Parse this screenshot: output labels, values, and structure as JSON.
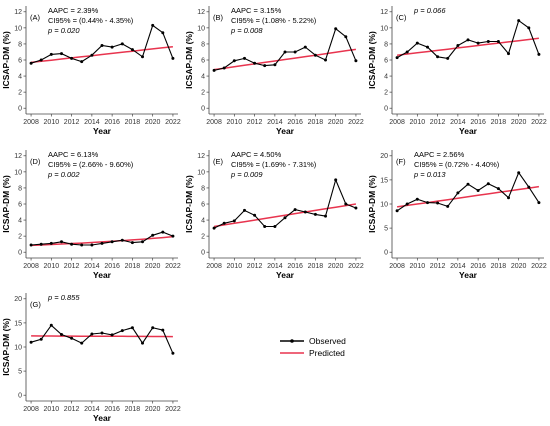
{
  "colors": {
    "observed": "#000000",
    "predicted": "#e8344e",
    "axis": "#444444"
  },
  "legend": {
    "observed_label": "Observed",
    "predicted_label": "Predicted"
  },
  "chart_data": [
    {
      "type": "line",
      "panel": "(A)",
      "annotations": [
        "AAPC = 2.39%",
        "CI95% = (0.44% - 4.35%)",
        "p = 0.020"
      ],
      "xlabel": "Year",
      "ylabel": "ICSAP-DM (%)",
      "ylim": [
        0,
        12
      ],
      "yticks": [
        0,
        2,
        4,
        6,
        8,
        10,
        12
      ],
      "xticks": [
        2008,
        2010,
        2012,
        2014,
        2016,
        2018,
        2020,
        2022
      ],
      "x": [
        2008,
        2009,
        2010,
        2011,
        2012,
        2013,
        2014,
        2015,
        2016,
        2017,
        2018,
        2019,
        2020,
        2021,
        2022
      ],
      "series": [
        {
          "name": "Observed",
          "values": [
            5.6,
            6.0,
            6.7,
            6.8,
            6.2,
            5.8,
            6.6,
            7.8,
            7.6,
            8.0,
            7.3,
            6.4,
            10.3,
            9.4,
            6.2
          ]
        },
        {
          "name": "Predicted",
          "values": [
            5.7,
            5.84,
            5.98,
            6.12,
            6.26,
            6.4,
            6.54,
            6.68,
            6.82,
            6.96,
            7.1,
            7.24,
            7.38,
            7.52,
            7.66
          ]
        }
      ]
    },
    {
      "type": "line",
      "panel": "(B)",
      "annotations": [
        "AAPC = 3.15%",
        "CI95% = (1.08% - 5.22%)",
        "p = 0.008"
      ],
      "xlabel": "Year",
      "ylabel": "ICSAP-DM (%)",
      "ylim": [
        0,
        12
      ],
      "yticks": [
        0,
        2,
        4,
        6,
        8,
        10,
        12
      ],
      "xticks": [
        2008,
        2010,
        2012,
        2014,
        2016,
        2018,
        2020,
        2022
      ],
      "x": [
        2008,
        2009,
        2010,
        2011,
        2012,
        2013,
        2014,
        2015,
        2016,
        2017,
        2018,
        2019,
        2020,
        2021,
        2022
      ],
      "series": [
        {
          "name": "Observed",
          "values": [
            4.7,
            5.0,
            5.9,
            6.2,
            5.6,
            5.3,
            5.4,
            7.0,
            7.0,
            7.6,
            6.6,
            6.0,
            9.9,
            8.9,
            5.9
          ]
        },
        {
          "name": "Predicted",
          "values": [
            4.8,
            4.98,
            5.16,
            5.34,
            5.52,
            5.7,
            5.88,
            6.06,
            6.24,
            6.42,
            6.6,
            6.78,
            6.96,
            7.14,
            7.32
          ]
        }
      ]
    },
    {
      "type": "line",
      "panel": "(C)",
      "annotations": [
        "p = 0.066"
      ],
      "xlabel": "Year",
      "ylabel": "ICSAP-DM (%)",
      "ylim": [
        0,
        12
      ],
      "yticks": [
        0,
        2,
        4,
        6,
        8,
        10,
        12
      ],
      "xticks": [
        2008,
        2010,
        2012,
        2014,
        2016,
        2018,
        2020,
        2022
      ],
      "x": [
        2008,
        2009,
        2010,
        2011,
        2012,
        2013,
        2014,
        2015,
        2016,
        2017,
        2018,
        2019,
        2020,
        2021,
        2022
      ],
      "series": [
        {
          "name": "Observed",
          "values": [
            6.3,
            7.0,
            8.1,
            7.6,
            6.4,
            6.2,
            7.8,
            8.5,
            8.1,
            8.3,
            8.3,
            6.8,
            10.9,
            10.0,
            6.7
          ]
        },
        {
          "name": "Predicted",
          "values": [
            6.6,
            6.75,
            6.9,
            7.05,
            7.2,
            7.35,
            7.5,
            7.65,
            7.8,
            7.95,
            8.1,
            8.25,
            8.4,
            8.55,
            8.7
          ]
        }
      ]
    },
    {
      "type": "line",
      "panel": "(D)",
      "annotations": [
        "AAPC = 6.13%",
        "CI95% = (2.66% - 9.60%)",
        "p = 0.002"
      ],
      "xlabel": "Year",
      "ylabel": "ICSAP-DM (%)",
      "ylim": [
        0,
        12
      ],
      "yticks": [
        0,
        2,
        4,
        6,
        8,
        10,
        12
      ],
      "xticks": [
        2008,
        2010,
        2012,
        2014,
        2016,
        2018,
        2020,
        2022
      ],
      "x": [
        2008,
        2009,
        2010,
        2011,
        2012,
        2013,
        2014,
        2015,
        2016,
        2017,
        2018,
        2019,
        2020,
        2021,
        2022
      ],
      "series": [
        {
          "name": "Observed",
          "values": [
            0.9,
            1.0,
            1.1,
            1.3,
            1.0,
            0.9,
            0.9,
            1.1,
            1.3,
            1.5,
            1.2,
            1.3,
            2.1,
            2.5,
            2.0
          ]
        },
        {
          "name": "Predicted",
          "values": [
            0.85,
            0.9,
            0.96,
            1.02,
            1.08,
            1.14,
            1.21,
            1.28,
            1.36,
            1.44,
            1.53,
            1.62,
            1.72,
            1.82,
            1.94
          ]
        }
      ]
    },
    {
      "type": "line",
      "panel": "(E)",
      "annotations": [
        "AAPC = 4.50%",
        "CI95% = (1.69% - 7.31%)",
        "p = 0.009"
      ],
      "xlabel": "Year",
      "ylabel": "ICSAP-DM (%)",
      "ylim": [
        0,
        12
      ],
      "yticks": [
        0,
        2,
        4,
        6,
        8,
        10,
        12
      ],
      "xticks": [
        2008,
        2010,
        2012,
        2014,
        2016,
        2018,
        2020,
        2022
      ],
      "x": [
        2008,
        2009,
        2010,
        2011,
        2012,
        2013,
        2014,
        2015,
        2016,
        2017,
        2018,
        2019,
        2020,
        2021,
        2022
      ],
      "series": [
        {
          "name": "Observed",
          "values": [
            3.0,
            3.6,
            3.9,
            5.2,
            4.6,
            3.2,
            3.2,
            4.3,
            5.3,
            5.0,
            4.7,
            4.5,
            9.0,
            6.0,
            5.5
          ]
        },
        {
          "name": "Predicted",
          "values": [
            3.2,
            3.4,
            3.6,
            3.8,
            4.0,
            4.2,
            4.4,
            4.6,
            4.8,
            5.0,
            5.2,
            5.4,
            5.6,
            5.8,
            6.0
          ]
        }
      ]
    },
    {
      "type": "line",
      "panel": "(F)",
      "annotations": [
        "AAPC = 2.56%",
        "CI95% = (0.72% - 4.40%)",
        "p = 0.013"
      ],
      "xlabel": "Year",
      "ylabel": "ICSAP-DM (%)",
      "ylim": [
        0,
        20
      ],
      "yticks": [
        0,
        5,
        10,
        15,
        20
      ],
      "xticks": [
        2008,
        2010,
        2012,
        2014,
        2016,
        2018,
        2020,
        2022
      ],
      "x": [
        2008,
        2009,
        2010,
        2011,
        2012,
        2013,
        2014,
        2015,
        2016,
        2017,
        2018,
        2019,
        2020,
        2021,
        2022
      ],
      "series": [
        {
          "name": "Observed",
          "values": [
            8.6,
            10.0,
            11.0,
            10.3,
            10.2,
            9.5,
            12.3,
            14.1,
            12.8,
            14.2,
            13.2,
            11.3,
            16.5,
            13.5,
            10.3
          ]
        },
        {
          "name": "Predicted",
          "values": [
            9.4,
            9.7,
            10.0,
            10.3,
            10.6,
            10.9,
            11.2,
            11.5,
            11.8,
            12.1,
            12.4,
            12.7,
            13.0,
            13.3,
            13.6
          ]
        }
      ]
    },
    {
      "type": "line",
      "panel": "(G)",
      "annotations": [
        "p = 0.855"
      ],
      "xlabel": "Year",
      "ylabel": "ICSAP-DM (%)",
      "ylim": [
        0,
        20
      ],
      "yticks": [
        0,
        5,
        10,
        15,
        20
      ],
      "xticks": [
        2008,
        2010,
        2012,
        2014,
        2016,
        2018,
        2020,
        2022
      ],
      "x": [
        2008,
        2009,
        2010,
        2011,
        2012,
        2013,
        2014,
        2015,
        2016,
        2017,
        2018,
        2019,
        2020,
        2021,
        2022
      ],
      "series": [
        {
          "name": "Observed",
          "values": [
            11.0,
            11.6,
            14.5,
            12.6,
            11.8,
            10.8,
            12.7,
            12.9,
            12.5,
            13.4,
            14.0,
            10.8,
            14.0,
            13.5,
            8.7
          ]
        },
        {
          "name": "Predicted",
          "values": [
            12.3,
            12.29,
            12.28,
            12.27,
            12.26,
            12.25,
            12.24,
            12.23,
            12.22,
            12.21,
            12.2,
            12.19,
            12.18,
            12.17,
            12.16
          ]
        }
      ]
    }
  ]
}
